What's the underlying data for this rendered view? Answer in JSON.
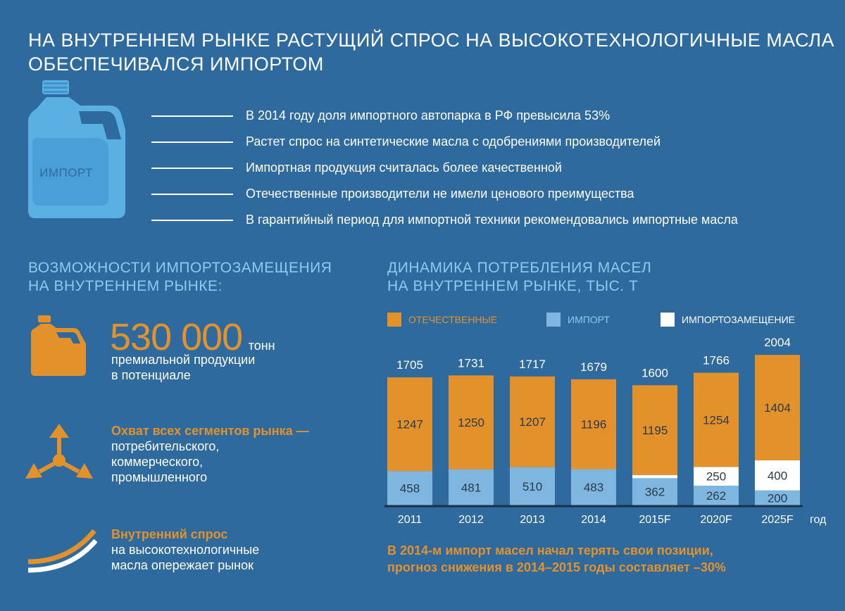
{
  "title": {
    "line1": "НА ВНУТРЕННЕМ РЫНКЕ РАСТУЩИЙ СПРОС НА ВЫСОКОТЕХНОЛОГИЧНЫЕ МАСЛА",
    "line2": "ОБЕСПЕЧИВАЛСЯ ИМПОРТОМ"
  },
  "canister_label": "ИМПОРТ",
  "facts": [
    "В 2014 году доля импортного автопарка в РФ превысила 53%",
    "Растет спрос на синтетические масла с одобрениями производителей",
    "Импортная продукция считалась более качественной",
    "Отечественные производители не имели ценового преимущества",
    "В гарантийный период для импортной техники рекомендовались импортные масла"
  ],
  "opportunities": {
    "heading_line1": "ВОЗМОЖНОСТИ ИМПОРТОЗАМЕЩЕНИЯ",
    "heading_line2": "НА ВНУТРЕННЕМ РЫНКЕ:",
    "volume": {
      "number": "530 000",
      "unit": "тонн",
      "line1": "премиальной продукции",
      "line2": "в потенциале"
    },
    "segments": {
      "bold": "Охват всех сегментов рынка —",
      "line1": "потребительского,",
      "line2": "коммерческого,",
      "line3": "промышленного"
    },
    "demand": {
      "bold": "Внутренний спрос",
      "line1": "на высокотехнологичные",
      "line2": "масла опережает рынок"
    }
  },
  "chart_heading": {
    "line1": "ДИНАМИКА ПОТРЕБЛЕНИЯ МАСЕЛ",
    "line2": "НА ВНУТРЕННЕМ РЫНКЕ, ТЫС. Т"
  },
  "colors": {
    "background": "#2e6a9e",
    "domestic": "#e3922b",
    "import": "#7eb6e0",
    "substitution": "#ffffff",
    "accent_light": "#8ec9ef"
  },
  "chart_data": {
    "type": "bar",
    "stacked": true,
    "categories": [
      "2011",
      "2012",
      "2013",
      "2014",
      "2015F",
      "2020F",
      "2025F"
    ],
    "x_unit": "год",
    "totals": [
      1705,
      1731,
      1717,
      1679,
      1600,
      1766,
      2004
    ],
    "series": [
      {
        "name": "ИМПОРТ",
        "color": "#7eb6e0",
        "values": [
          458,
          481,
          510,
          483,
          362,
          262,
          200
        ]
      },
      {
        "name": "ИМПОРТОЗАМЕЩЕНИЕ",
        "color": "#ffffff",
        "values": [
          0,
          0,
          0,
          0,
          43,
          250,
          400
        ]
      },
      {
        "name": "ОТЕЧЕСТВЕННЫЕ",
        "color": "#e3922b",
        "values": [
          1247,
          1250,
          1207,
          1196,
          1195,
          1254,
          1404
        ]
      }
    ],
    "legend": [
      "ОТЕЧЕСТВЕННЫЕ",
      "ИМПОРТ",
      "ИМПОРТОЗАМЕЩЕНИЕ"
    ],
    "legend_position": "top",
    "grid": false
  },
  "note": {
    "line1": "В 2014-м импорт масел начал терять свои позиции,",
    "line2": "прогноз снижения в 2014–2015 годы составляет –30%"
  }
}
